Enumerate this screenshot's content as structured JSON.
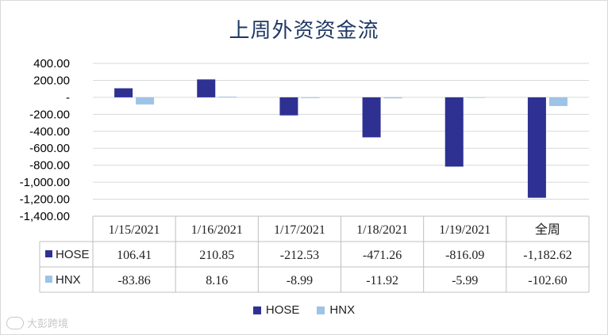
{
  "chart_data": {
    "type": "bar",
    "title": "上周外资资金流",
    "categories": [
      "1/15/2021",
      "1/16/2021",
      "1/17/2021",
      "1/18/2021",
      "1/19/2021",
      "全周"
    ],
    "series": [
      {
        "name": "HOSE",
        "color": "#2e3192",
        "values": [
          106.41,
          210.85,
          -212.53,
          -471.26,
          -816.09,
          -1182.62
        ],
        "labels": [
          "106.41",
          "210.85",
          "-212.53",
          "-471.26",
          "-816.09",
          "-1,182.62"
        ]
      },
      {
        "name": "HNX",
        "color": "#9dc3e6",
        "values": [
          -83.86,
          8.16,
          -8.99,
          -11.92,
          -5.99,
          -102.6
        ],
        "labels": [
          "-83.86",
          "8.16",
          "-8.99",
          "-11.92",
          "-5.99",
          "-102.60"
        ]
      }
    ],
    "ylim": [
      -1400,
      400
    ],
    "yticks": [
      400,
      200,
      0,
      -200,
      -400,
      -600,
      -800,
      -1000,
      -1200,
      -1400
    ],
    "ytick_labels": [
      "400.00",
      "200.00",
      "-",
      "-200.00",
      "-400.00",
      "-600.00",
      "-800.00",
      "-1,000.00",
      "-1,200.00",
      "-1,400.00"
    ],
    "grid": true,
    "legend_position": "bottom",
    "data_table": true
  },
  "watermark": {
    "text": "大彭跨境",
    "icon": "logo-icon"
  }
}
